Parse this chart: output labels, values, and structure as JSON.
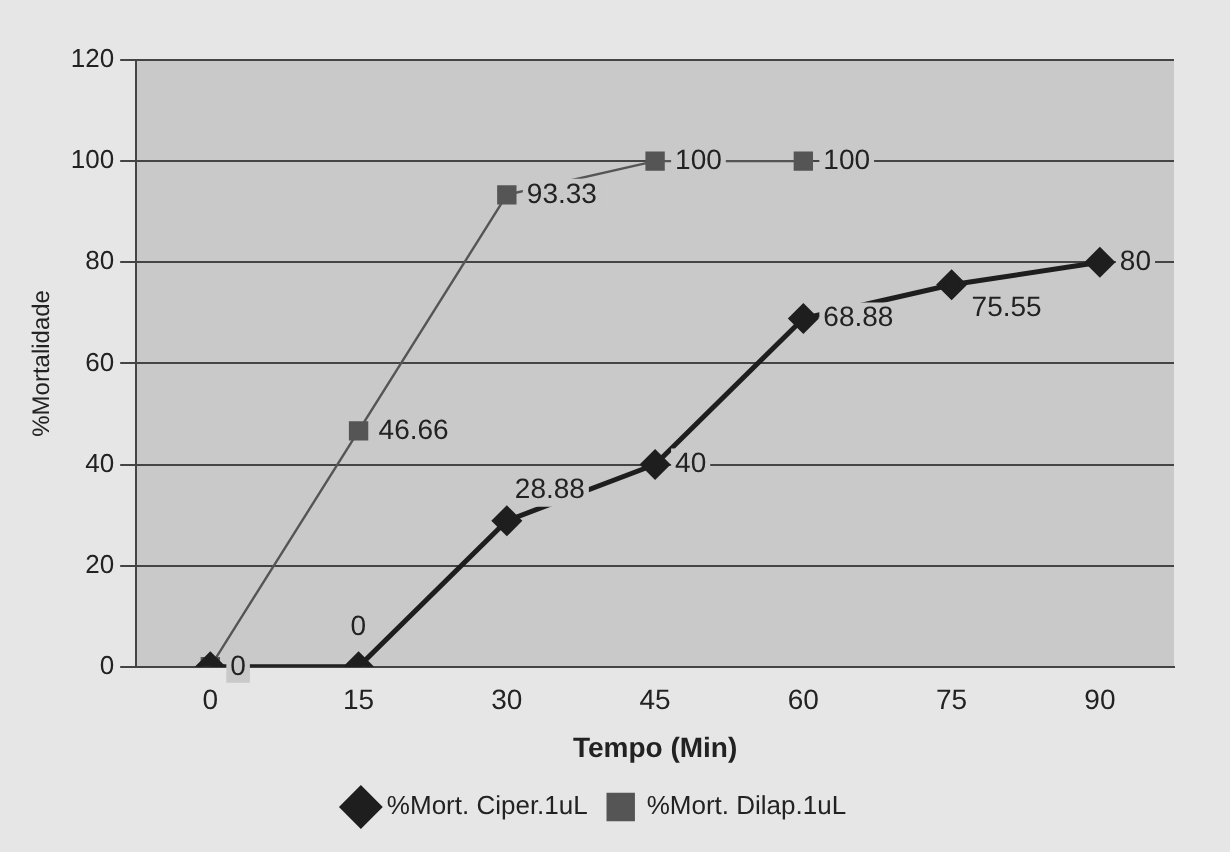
{
  "chart_data": {
    "type": "line",
    "xlabel": "Tempo (Min)",
    "ylabel": "%Mortalidade",
    "categories": [
      "0",
      "15",
      "30",
      "45",
      "60",
      "75",
      "90"
    ],
    "ylim": [
      0,
      120
    ],
    "yticks": [
      0,
      20,
      40,
      60,
      80,
      100,
      120
    ],
    "grid": "y",
    "legend": "bottom",
    "line_style": "solid",
    "series": [
      {
        "name": "%Mort. Ciper.1uL",
        "color": "#1e1e1e",
        "marker": "diamond",
        "values": [
          0,
          0,
          28.88,
          40,
          68.88,
          75.55,
          80
        ],
        "value_labels": [
          "0",
          "0",
          "28.88",
          "40",
          "68.88",
          "75.55",
          "80"
        ]
      },
      {
        "name": "%Mort. Dilap.1uL",
        "color": "#555555",
        "marker": "square",
        "values": [
          0,
          46.66,
          93.33,
          100,
          100,
          null,
          null
        ],
        "value_labels": [
          null,
          "46.66",
          "93.33",
          "100",
          "100",
          null,
          null
        ]
      }
    ]
  }
}
